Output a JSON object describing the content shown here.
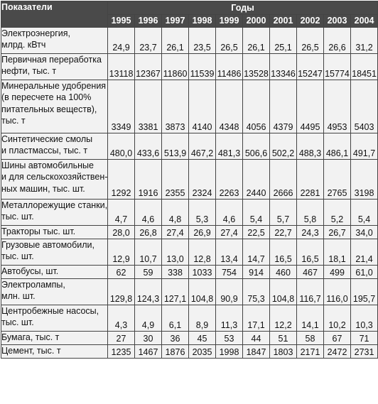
{
  "header": {
    "indicators": "Показатели",
    "years_label": "Годы",
    "years": [
      "1995",
      "1996",
      "1997",
      "1998",
      "1999",
      "2000",
      "2001",
      "2002",
      "2003",
      "2004"
    ]
  },
  "rows": [
    {
      "label": [
        "Электроэнергия,",
        "млрд. кВтч"
      ],
      "values": [
        "24,9",
        "23,7",
        "26,1",
        "23,5",
        "26,5",
        "26,1",
        "25,1",
        "26,5",
        "26,6",
        "31,2"
      ]
    },
    {
      "label": [
        "Первичная переработка",
        "нефти, тыс. т"
      ],
      "values": [
        "13118",
        "12367",
        "11860",
        "11539",
        "11486",
        "13528",
        "13346",
        "15247",
        "15774",
        "18451"
      ]
    },
    {
      "label": [
        "Минеральные удобрения",
        "(в пересчете на 100%",
        "питательных веществ),",
        "тыс. т"
      ],
      "values": [
        "3349",
        "3381",
        "3873",
        "4140",
        "4348",
        "4056",
        "4379",
        "4495",
        "4953",
        "5403"
      ]
    },
    {
      "label": [
        "Синтетические смолы",
        "и пластмассы, тыс. т"
      ],
      "values": [
        "480,0",
        "433,6",
        "513,9",
        "467,2",
        "481,3",
        "506,6",
        "502,2",
        "488,3",
        "486,1",
        "491,7"
      ]
    },
    {
      "label": [
        "Шины автомобильные",
        "и для сельскохозяйствен-",
        "ных машин, тыс. шт."
      ],
      "values": [
        "1292",
        "1916",
        "2355",
        "2324",
        "2263",
        "2440",
        "2666",
        "2281",
        "2765",
        "3198"
      ]
    },
    {
      "label": [
        "Металлорежущие станки,",
        "тыс. шт."
      ],
      "values": [
        "4,7",
        "4,6",
        "4,8",
        "5,3",
        "4,6",
        "5,4",
        "5,7",
        "5,8",
        "5,2",
        "5,4"
      ]
    },
    {
      "label": [
        "Тракторы тыс. шт."
      ],
      "values": [
        "28,0",
        "26,8",
        "27,4",
        "26,9",
        "27,4",
        "22,5",
        "22,7",
        "24,3",
        "26,7",
        "34,0"
      ]
    },
    {
      "label": [
        "Грузовые автомобили,",
        "тыс. шт."
      ],
      "values": [
        "12,9",
        "10,7",
        "13,0",
        "12,8",
        "13,4",
        "14,7",
        "16,5",
        "16,5",
        "18,1",
        "21,4"
      ]
    },
    {
      "label": [
        "Автобусы, шт."
      ],
      "values": [
        "62",
        "59",
        "338",
        "1033",
        "754",
        "914",
        "460",
        "467",
        "499",
        "61,0"
      ]
    },
    {
      "label": [
        "Электролампы,",
        "млн. шт."
      ],
      "values": [
        "129,8",
        "124,3",
        "127,1",
        "104,8",
        "90,9",
        "75,3",
        "104,8",
        "116,7",
        "116,0",
        "195,7"
      ]
    },
    {
      "label": [
        "Центробежные насосы,",
        "тыс. шт."
      ],
      "values": [
        "4,3",
        "4,9",
        "6,1",
        "8,9",
        "11,3",
        "17,1",
        "12,2",
        "14,1",
        "10,2",
        "10,3"
      ]
    },
    {
      "label": [
        "Бумага, тыс. т"
      ],
      "values": [
        "27",
        "30",
        "36",
        "45",
        "53",
        "44",
        "51",
        "58",
        "67",
        "71"
      ]
    },
    {
      "label": [
        "Цемент, тыс. т"
      ],
      "values": [
        "1235",
        "1467",
        "1876",
        "2035",
        "1998",
        "1847",
        "1803",
        "2171",
        "2472",
        "2731"
      ]
    }
  ]
}
